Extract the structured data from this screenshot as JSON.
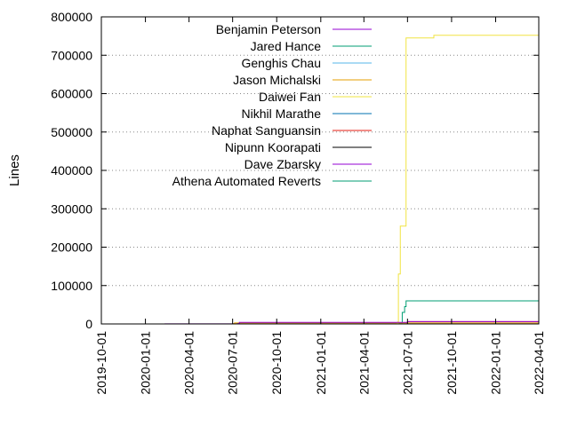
{
  "chart_data": {
    "type": "line",
    "title": "",
    "xlabel": "",
    "ylabel": "Lines",
    "x_type": "date",
    "xlim": [
      "2019-10-01",
      "2022-04-01"
    ],
    "ylim": [
      0,
      800000
    ],
    "y_ticks": [
      0,
      100000,
      200000,
      300000,
      400000,
      500000,
      600000,
      700000,
      800000
    ],
    "x_ticks": [
      "2019-10-01",
      "2020-01-01",
      "2020-04-01",
      "2020-07-01",
      "2020-10-01",
      "2021-01-01",
      "2021-04-01",
      "2021-07-01",
      "2021-10-01",
      "2022-01-01",
      "2022-04-01"
    ],
    "grid": {
      "horizontal": true,
      "vertical": false,
      "style": "dotted"
    },
    "legend": "top-right",
    "series": [
      {
        "name": "Benjamin Peterson",
        "color": "#9400d3",
        "points": [
          [
            "2020-02-10",
            300
          ],
          [
            "2020-02-10",
            300
          ],
          [
            "2022-04-01",
            300
          ]
        ]
      },
      {
        "name": "Jared Hance",
        "color": "#009e73",
        "points": [
          [
            "2021-06-10",
            0
          ],
          [
            "2021-06-15",
            3000
          ],
          [
            "2021-06-20",
            30000
          ],
          [
            "2021-06-25",
            45000
          ],
          [
            "2021-06-28",
            60000
          ],
          [
            "2022-04-01",
            60000
          ]
        ]
      },
      {
        "name": "Genghis Chau",
        "color": "#56b4e9",
        "points": [
          [
            "2021-06-01",
            0
          ],
          [
            "2022-04-01",
            500
          ]
        ]
      },
      {
        "name": "Jason Michalski",
        "color": "#e69f00",
        "points": [
          [
            "2020-07-01",
            800
          ],
          [
            "2020-07-05",
            2500
          ],
          [
            "2022-04-01",
            3000
          ]
        ]
      },
      {
        "name": "Daiwei Fan",
        "color": "#f0e442",
        "points": [
          [
            "2021-06-05",
            0
          ],
          [
            "2021-06-10",
            5000
          ],
          [
            "2021-06-12",
            130000
          ],
          [
            "2021-06-16",
            255000
          ],
          [
            "2021-06-26",
            255000
          ],
          [
            "2021-06-28",
            745000
          ],
          [
            "2021-08-10",
            745000
          ],
          [
            "2021-08-25",
            752000
          ],
          [
            "2022-04-01",
            752000
          ]
        ]
      },
      {
        "name": "Nikhil Marathe",
        "color": "#0072b2",
        "points": [
          [
            "2021-06-01",
            0
          ],
          [
            "2022-04-01",
            800
          ]
        ]
      },
      {
        "name": "Naphat Sanguansin",
        "color": "#e51e10",
        "points": [
          [
            "2021-06-20",
            0
          ],
          [
            "2021-07-01",
            6000
          ],
          [
            "2022-04-01",
            7000
          ]
        ]
      },
      {
        "name": "Nipunn Koorapati",
        "color": "#000000",
        "points": [
          [
            "2021-07-01",
            0
          ],
          [
            "2022-04-01",
            1000
          ]
        ]
      },
      {
        "name": "Dave Zbarsky",
        "color": "#9400d3",
        "points": [
          [
            "2020-07-10",
            1000
          ],
          [
            "2020-07-15",
            4000
          ],
          [
            "2021-06-20",
            4000
          ],
          [
            "2021-07-01",
            6000
          ],
          [
            "2022-04-01",
            6000
          ]
        ]
      },
      {
        "name": "Athena Automated Reverts",
        "color": "#009e73",
        "points": [
          [
            "2021-07-01",
            0
          ],
          [
            "2022-04-01",
            500
          ]
        ]
      }
    ]
  }
}
